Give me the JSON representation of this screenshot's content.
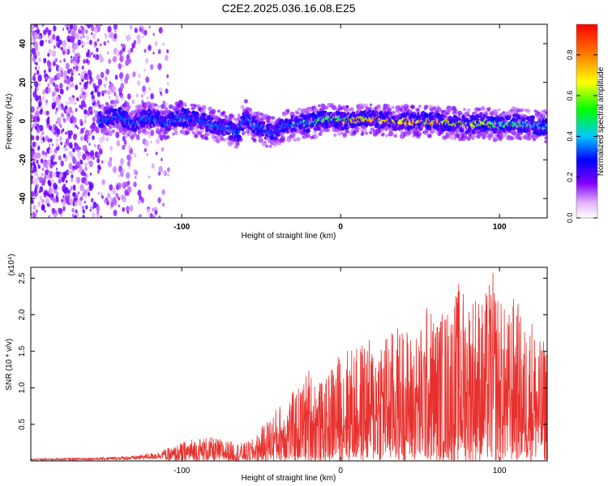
{
  "title": "C2E2.2025.036.16.08.E25",
  "chart_data": [
    {
      "type": "heatmap",
      "xlabel": "Height of straight line (km)",
      "ylabel": "Frequency (Hz)",
      "xlim": [
        -195,
        130
      ],
      "ylim": [
        -50,
        50
      ],
      "xticks": [
        -100,
        0,
        100
      ],
      "yticks": [
        -40,
        -20,
        0,
        20,
        40
      ],
      "colorbar": {
        "label": "Normalized spectral amplitude",
        "range": [
          0,
          0.95
        ],
        "ticks": [
          "0.0",
          "0.2",
          "0.4",
          "0.6",
          "0.8"
        ],
        "colormap": "rainbow (white → violet → blue → cyan → green → yellow → red)"
      },
      "noise_region_x": [
        -195,
        -108
      ],
      "signal_region_x": [
        -152,
        130
      ],
      "ridge": {
        "x": [
          -152,
          -140,
          -130,
          -120,
          -110,
          -100,
          -90,
          -80,
          -70,
          -65,
          -60,
          -55,
          -50,
          -45,
          -40,
          -35,
          -30,
          -25,
          -20,
          -15,
          -10,
          -5,
          0,
          10,
          20,
          30,
          40,
          50,
          60,
          70,
          80,
          90,
          100,
          110,
          120,
          130
        ],
        "frequency_hz": [
          0,
          3,
          -1,
          2,
          -1,
          2,
          0,
          -2,
          -4,
          -7,
          3,
          -2,
          -3,
          -6,
          -5,
          -2,
          -2,
          -1,
          -1,
          0,
          1,
          1,
          0,
          1,
          1,
          0,
          0,
          0,
          0,
          -1,
          -2,
          -1,
          -2,
          -1,
          -2,
          -3
        ],
        "peak_amplitude": [
          0.3,
          0.35,
          0.4,
          0.38,
          0.4,
          0.45,
          0.4,
          0.35,
          0.35,
          0.3,
          0.45,
          0.4,
          0.35,
          0.3,
          0.35,
          0.4,
          0.45,
          0.5,
          0.55,
          0.6,
          0.65,
          0.7,
          0.75,
          0.8,
          0.85,
          0.9,
          0.88,
          0.85,
          0.85,
          0.8,
          0.75,
          0.7,
          0.65,
          0.6,
          0.55,
          0.5
        ]
      }
    },
    {
      "type": "line",
      "xlabel": "Height of straight line (km)",
      "ylabel": "SNR (10 * v/v)",
      "y_multiplier": "(x10⁴)",
      "xlim": [
        -195,
        130
      ],
      "ylim": [
        0,
        2.65
      ],
      "xticks": [
        -100,
        0,
        100
      ],
      "yticks": [
        0.5,
        1.0,
        1.5,
        2.0,
        2.5
      ],
      "color": "#e8312e",
      "envelope": {
        "x": [
          -195,
          -150,
          -130,
          -115,
          -105,
          -95,
          -85,
          -75,
          -65,
          -60,
          -55,
          -50,
          -45,
          -40,
          -35,
          -30,
          -25,
          -20,
          -15,
          -10,
          -5,
          0,
          5,
          10,
          15,
          20,
          25,
          30,
          35,
          40,
          45,
          50,
          55,
          60,
          65,
          70,
          75,
          80,
          85,
          90,
          95,
          100,
          105,
          110,
          115,
          120,
          125,
          130
        ],
        "y": [
          0.03,
          0.05,
          0.07,
          0.12,
          0.2,
          0.3,
          0.33,
          0.3,
          0.25,
          0.25,
          0.3,
          0.45,
          0.6,
          0.75,
          0.85,
          0.95,
          1.05,
          1.3,
          1.15,
          1.05,
          1.4,
          1.5,
          1.6,
          1.55,
          1.7,
          1.65,
          1.9,
          1.75,
          1.85,
          1.9,
          1.75,
          1.85,
          2.2,
          2.0,
          2.1,
          2.2,
          2.5,
          2.3,
          2.4,
          2.2,
          2.65,
          2.3,
          2.0,
          2.35,
          1.85,
          2.05,
          1.65,
          1.7
        ]
      }
    }
  ]
}
